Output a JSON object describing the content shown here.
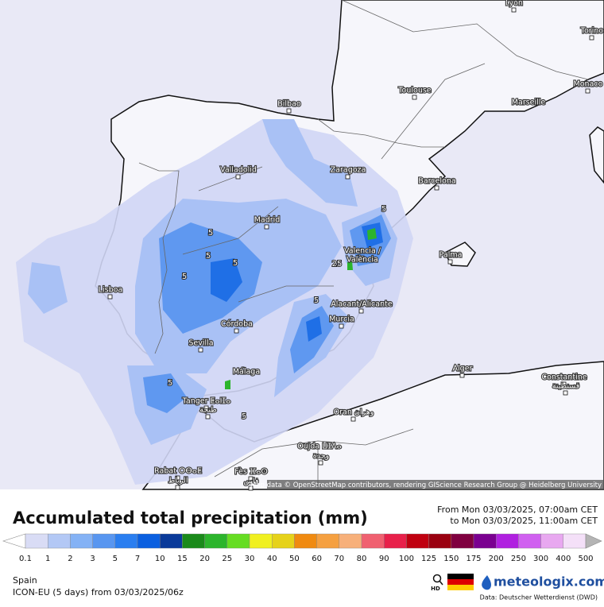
{
  "map": {
    "cities": [
      "Lyon",
      "Torino",
      "Monaco",
      "Toulouse",
      "Marseille",
      "Bilbao",
      "Zaragoza",
      "Barcelona",
      "Valladolid",
      "Madrid",
      "Valencia /",
      "València",
      "Palma",
      "Lisboa",
      "Córdoba",
      "Sevilla",
      "Alacant/Alicante",
      "Murcia",
      "Málaga",
      "Tanger ⵟⴰⵏⵊⴰ",
      "طنجة",
      "Oran وهران",
      "Alger",
      "Constantine",
      "قسنطينة",
      "Oujda ⵡⵊⴷⴰ",
      "وجدة",
      "Rabat ⵔⴱⴰⵟ",
      "الرباط",
      "Fès ⴼⴰⵙ",
      "فاس"
    ],
    "contour_labels": [
      5,
      5,
      5,
      5,
      5,
      25,
      5,
      5,
      5
    ],
    "attribution": "Map data © OpenStreetMap contributors, rendering GIScience Research Group @ Heidelberg University"
  },
  "legend": {
    "title": "Accumulated total precipitation (mm)",
    "period_from": "From Mon 03/03/2025, 07:00am CET",
    "period_to": "to Mon 03/03/2025, 11:00am CET",
    "bounds": [
      0.1,
      1,
      2,
      3,
      5,
      7,
      10,
      15,
      20,
      25,
      30,
      40,
      50,
      60,
      70,
      80,
      90,
      100,
      125,
      150,
      175,
      200,
      250,
      300,
      400,
      500
    ],
    "colors": [
      "#d9dcf5",
      "#b3c8f5",
      "#84b2f5",
      "#5896f0",
      "#2a7ef0",
      "#0a5fe0",
      "#0a3a9a",
      "#1a8a1a",
      "#2cb52c",
      "#66dd22",
      "#f0f020",
      "#e6d21a",
      "#f08a10",
      "#f5a040",
      "#f7b07a",
      "#f06070",
      "#e8204a",
      "#c00010",
      "#9a0010",
      "#800040",
      "#7a0090",
      "#b020e0",
      "#d060f0",
      "#e8a8f0",
      "#f4e0f8"
    ],
    "under_color": "#ffffff",
    "over_color": "#b4b4b4"
  },
  "footer": {
    "region": "Spain",
    "model": "ICON-EU (5 days) from 03/03/2025/06z",
    "hd": "HD",
    "brand": "meteologix.com",
    "source": "Data: Deutscher Wetterdienst (DWD)"
  }
}
